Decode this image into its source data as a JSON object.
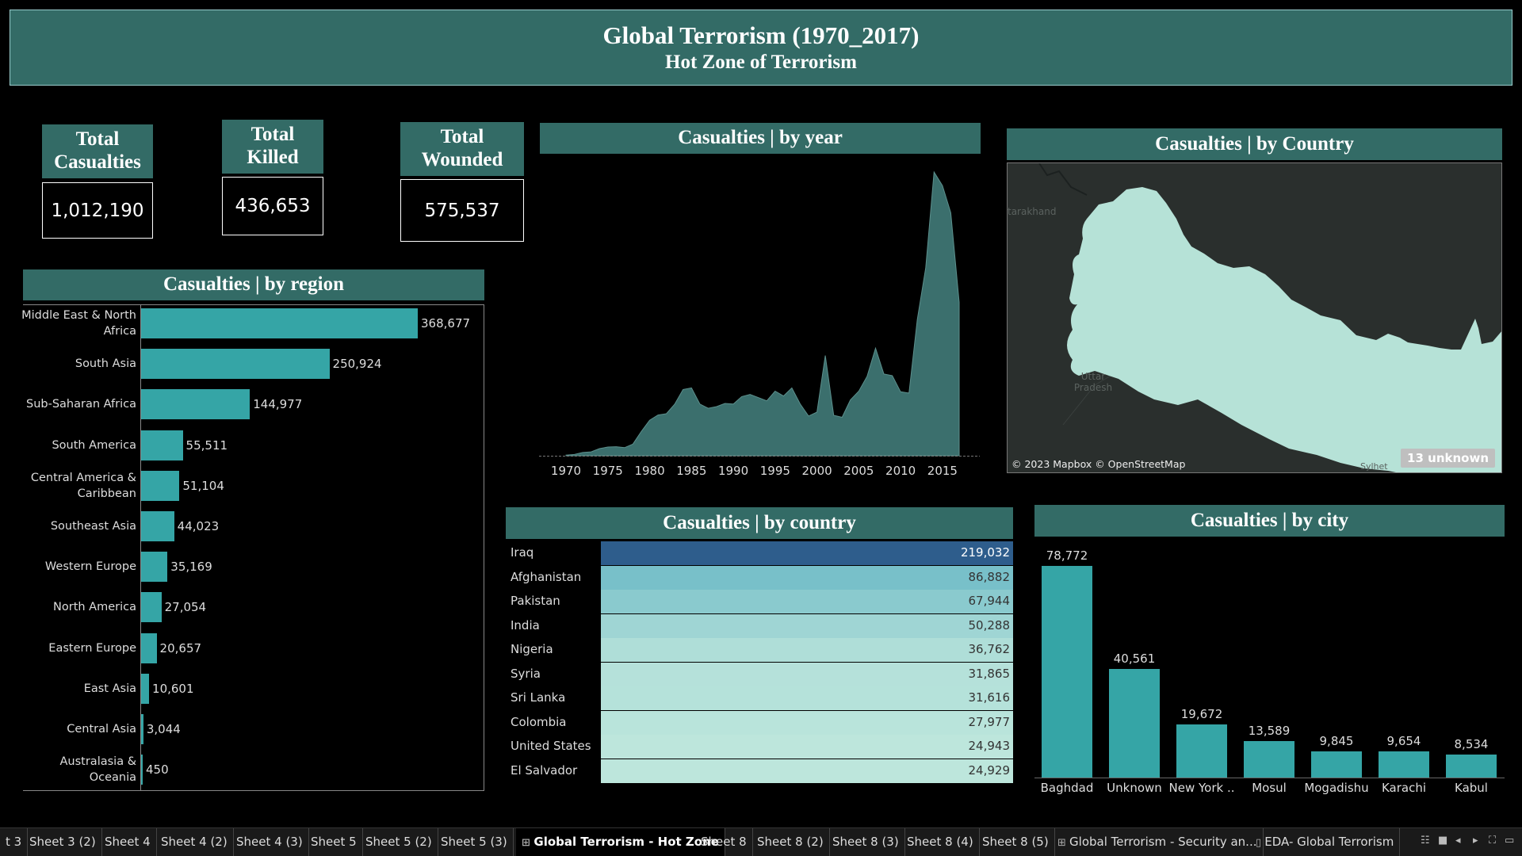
{
  "header": {
    "title": "Global Terrorism (1970_2017)",
    "subtitle": "Hot Zone of Terrorism"
  },
  "kpis": {
    "casualties": {
      "label_line1": "Total",
      "label_line2": "Casualties",
      "value": "1,012,190"
    },
    "killed": {
      "label_line1": "Total",
      "label_line2": "Killed",
      "value": "436,653"
    },
    "wounded": {
      "label_line1": "Total",
      "label_line2": "Wounded",
      "value": "575,537"
    }
  },
  "panels": {
    "region": "Casualties | by region",
    "year": "Casualties | by year",
    "map": "Casualties | by Country",
    "country": "Casualties | by country",
    "city": "Casualties | by city"
  },
  "map": {
    "label_uttarakhand": "tarakhand",
    "label_up_line1": "Uttar",
    "label_up_line2": "Pradesh",
    "label_sylhet": "Sylhet",
    "attribution": "© 2023 Mapbox © OpenStreetMap",
    "unknown_badge": "13 unknown",
    "land_color": "#2a2f2d",
    "highlight_color": "#b6e2d7"
  },
  "chart_data": [
    {
      "type": "bar",
      "orientation": "horizontal",
      "title": "Casualties | by region",
      "categories": [
        "Middle East & North Africa",
        "South Asia",
        "Sub-Saharan Africa",
        "South America",
        "Central America & Caribbean",
        "Southeast Asia",
        "Western Europe",
        "North America",
        "Eastern Europe",
        "East Asia",
        "Central Asia",
        "Australasia & Oceania"
      ],
      "category_lines": [
        [
          "Middle East & North",
          "Africa"
        ],
        [
          "South Asia"
        ],
        [
          "Sub-Saharan Africa"
        ],
        [
          "South America"
        ],
        [
          "Central America &",
          "Caribbean"
        ],
        [
          "Southeast Asia"
        ],
        [
          "Western Europe"
        ],
        [
          "North America"
        ],
        [
          "Eastern Europe"
        ],
        [
          "East Asia"
        ],
        [
          "Central Asia"
        ],
        [
          "Australasia &",
          "Oceania"
        ]
      ],
      "values": [
        368677,
        250924,
        144977,
        55511,
        51104,
        44023,
        35169,
        27054,
        20657,
        10601,
        3044,
        450
      ],
      "value_labels": [
        "368,677",
        "250,924",
        "144,977",
        "55,511",
        "51,104",
        "44,023",
        "35,169",
        "27,054",
        "20,657",
        "10,601",
        "3,044",
        "450"
      ],
      "color": "#35a5a6"
    },
    {
      "type": "area",
      "title": "Casualties | by year",
      "x_ticks": [
        "1970",
        "1975",
        "1980",
        "1985",
        "1990",
        "1995",
        "2000",
        "2005",
        "2010",
        "2015"
      ],
      "x": [
        1970,
        1971,
        1972,
        1973,
        1974,
        1975,
        1976,
        1977,
        1978,
        1979,
        1980,
        1981,
        1982,
        1983,
        1984,
        1985,
        1986,
        1987,
        1988,
        1989,
        1990,
        1991,
        1992,
        1994,
        1995,
        1996,
        1997,
        1998,
        1999,
        2000,
        2001,
        2002,
        2003,
        2004,
        2005,
        2006,
        2007,
        2008,
        2009,
        2010,
        2011,
        2012,
        2013,
        2014,
        2015,
        2016,
        2017
      ],
      "y": [
        200,
        400,
        1000,
        1200,
        2200,
        2700,
        2800,
        2500,
        3600,
        7500,
        11000,
        12600,
        13000,
        16000,
        20500,
        21000,
        16000,
        14700,
        15200,
        16200,
        16000,
        18300,
        19000,
        17000,
        20000,
        18500,
        21000,
        16000,
        12300,
        13500,
        31000,
        12500,
        11900,
        17300,
        20000,
        24600,
        33300,
        25300,
        24800,
        19800,
        19400,
        42200,
        58200,
        87800,
        83600,
        75200,
        47500
      ],
      "xlim": [
        1970,
        2017
      ],
      "ylim": [
        0,
        92000
      ],
      "color": "#3b6f6d"
    },
    {
      "type": "table",
      "title": "Casualties | by country",
      "rows": [
        {
          "country": "Iraq",
          "value": 219032,
          "label": "219,032"
        },
        {
          "country": "Afghanistan",
          "value": 86882,
          "label": "86,882"
        },
        {
          "country": "Pakistan",
          "value": 67944,
          "label": "67,944"
        },
        {
          "country": "India",
          "value": 50288,
          "label": "50,288"
        },
        {
          "country": "Nigeria",
          "value": 36762,
          "label": "36,762"
        },
        {
          "country": "Syria",
          "value": 31865,
          "label": "31,865"
        },
        {
          "country": "Sri Lanka",
          "value": 31616,
          "label": "31,616"
        },
        {
          "country": "Colombia",
          "value": 27977,
          "label": "27,977"
        },
        {
          "country": "United States",
          "value": 24943,
          "label": "24,943"
        },
        {
          "country": "El Salvador",
          "value": 24929,
          "label": "24,929"
        }
      ],
      "color_high": "#2e5d8c",
      "color_low": "#bde6dc"
    },
    {
      "type": "bar",
      "title": "Casualties | by city",
      "categories": [
        "Baghdad",
        "Unknown",
        "New York ..",
        "Mosul",
        "Mogadishu",
        "Karachi",
        "Kabul"
      ],
      "values": [
        78772,
        40561,
        19672,
        13589,
        9845,
        9654,
        8534
      ],
      "value_labels": [
        "78,772",
        "40,561",
        "19,672",
        "13,589",
        "9,845",
        "9,654",
        "8,534"
      ],
      "color": "#35a5a6"
    }
  ],
  "tabs": [
    {
      "label": "t 3",
      "active": false
    },
    {
      "label": "Sheet 3 (2)",
      "active": false
    },
    {
      "label": "Sheet 4",
      "active": false
    },
    {
      "label": "Sheet 4 (2)",
      "active": false
    },
    {
      "label": "Sheet 4 (3)",
      "active": false
    },
    {
      "label": "Sheet 5",
      "active": false
    },
    {
      "label": "Sheet 5 (2)",
      "active": false
    },
    {
      "label": "Sheet 5 (3)",
      "active": false
    },
    {
      "label": "Global Terrorism - Hot Zone",
      "active": true,
      "icon": "dashboard-icon"
    },
    {
      "label": "Sheet 8",
      "active": false
    },
    {
      "label": "Sheet 8 (2)",
      "active": false
    },
    {
      "label": "Sheet 8 (3)",
      "active": false
    },
    {
      "label": "Sheet 8 (4)",
      "active": false
    },
    {
      "label": "Sheet 8 (5)",
      "active": false
    },
    {
      "label": "Global Terrorism - Security an...",
      "active": false,
      "icon": "dashboard-icon"
    },
    {
      "label": "EDA- Global Terrorism",
      "active": false,
      "icon": "story-icon"
    }
  ]
}
